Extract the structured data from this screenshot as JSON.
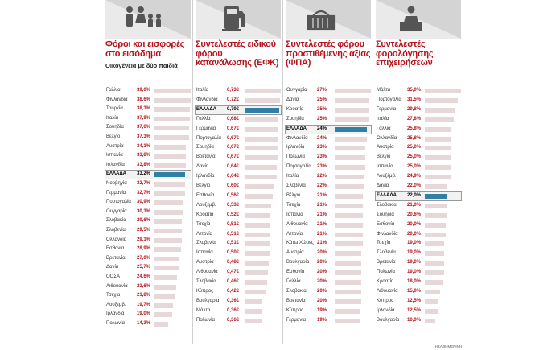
{
  "credit": "ΗΚΑΘΗΜΕΡΙΝΗ",
  "colors": {
    "accent": "#b5121b",
    "bar": "#e6d8d8",
    "highlight_bar": "#2f7fa6",
    "header_bg": "#e0e0e0",
    "icon": "#555555"
  },
  "chart_data": [
    {
      "type": "bar",
      "icon": "family-icon",
      "title": "Φόροι και εισφορές στο εισόδημα",
      "subtitle": "Οικογένεια με δύο παιδιά",
      "highlight": "ΕΛΛΑΔΑ",
      "categories": [
        "Γαλλία",
        "Φινλανδία",
        "Τουρκία",
        "Ιταλία",
        "Σουηδία",
        "Βέλγιο",
        "Αυστρία",
        "Ισπανία",
        "Ισλανδία",
        "ΕΛΛΑΔΑ",
        "Νορβηγία",
        "Γερμανία",
        "Πορτογαλία",
        "Ουγγαρία",
        "Σλοβακία",
        "Σλοβενία",
        "Ολλανδία",
        "Εσθονία",
        "Βρετανία",
        "Δανία",
        "ΟΟΣΑ",
        "Λιθουανία",
        "Τσεχία",
        "Λουξεμβ.",
        "Ιρλανδία",
        "Πολωνία"
      ],
      "labels": [
        "39,0%",
        "38,6%",
        "38,3%",
        "37,9%",
        "37,6%",
        "37,3%",
        "34,1%",
        "33,8%",
        "33,8%",
        "33,2%",
        "32,7%",
        "32,7%",
        "30,9%",
        "30,3%",
        "29,6%",
        "29,5%",
        "29,1%",
        "28,9%",
        "27,0%",
        "25,7%",
        "24,6%",
        "23,6%",
        "21,8%",
        "19,7%",
        "19,0%",
        "14,3%"
      ],
      "values": [
        39.0,
        38.6,
        38.3,
        37.9,
        37.6,
        37.3,
        34.1,
        33.8,
        33.8,
        33.2,
        32.7,
        32.7,
        30.9,
        30.3,
        29.6,
        29.5,
        29.1,
        28.9,
        27.0,
        25.7,
        24.6,
        23.6,
        21.8,
        19.7,
        19.0,
        14.3
      ]
    },
    {
      "type": "bar",
      "icon": "fuel-pump-icon",
      "title": "Συντελεστές ειδικού φόρου κατανάλωσης (ΕΦΚ)",
      "subtitle": "",
      "highlight": "ΕΛΛΑΔΑ",
      "categories": [
        "Ιταλία",
        "Φινλανδία",
        "ΕΛΛΑΔΑ",
        "Γαλλία",
        "Γερμανία",
        "Πορτογαλία",
        "Σουηδία",
        "Βρετανία",
        "Δανία",
        "Ιρλανδία",
        "Βέλγιο",
        "Εσθονία",
        "Λουξέμβ.",
        "Κροατία",
        "Τσεχία",
        "Λετονία",
        "Σλοβενία",
        "Ισπανία",
        "Αυστρία",
        "Λιθουανία",
        "Σλοβακία",
        "Κύπρος",
        "Βουλγαρία",
        "Μάλτα",
        "Πολωνία"
      ],
      "labels": [
        "0,73€",
        "0,72€",
        "0,70€",
        "0,68€",
        "0,67€",
        "0,67€",
        "0,67€",
        "0,67€",
        "0,64€",
        "0,64€",
        "0,60€",
        "0,56€",
        "0,53€",
        "0,52€",
        "0,51€",
        "0,51€",
        "0,51€",
        "0,50€",
        "0,48€",
        "0,47€",
        "0,46€",
        "0,42€",
        "0,36€",
        "0,36€",
        "0,36€"
      ],
      "values": [
        0.73,
        0.72,
        0.7,
        0.68,
        0.67,
        0.67,
        0.67,
        0.67,
        0.64,
        0.64,
        0.6,
        0.56,
        0.53,
        0.52,
        0.51,
        0.51,
        0.51,
        0.5,
        0.48,
        0.47,
        0.46,
        0.42,
        0.36,
        0.36,
        0.36
      ]
    },
    {
      "type": "bar",
      "icon": "basket-icon",
      "title": "Συντελεστές φόρου προστιθέμενης αξίας (ΦΠΑ)",
      "subtitle": "",
      "highlight": "ΕΛΛΑΔΑ",
      "categories": [
        "Ουγγαρία",
        "Δανία",
        "Κροατία",
        "Σουηδία",
        "ΕΛΛΑΔΑ",
        "Φινλανδία",
        "Ιρλανδία",
        "Πολωνία",
        "Πορτογαλία",
        "Ιταλία",
        "Σλοβενία",
        "Βέλγιο",
        "Τσεχία",
        "Ισπανία",
        "Λιθουανία",
        "Λετονία",
        "Κάτω Χώρες",
        "Αυστρία",
        "Βουλγαρία",
        "Εσθονία",
        "Γαλλία",
        "Σλοβακία",
        "Βρετανία",
        "Κύπρος",
        "Γερμανία"
      ],
      "labels": [
        "27%",
        "25%",
        "25%",
        "25%",
        "24%",
        "24%",
        "23%",
        "23%",
        "23%",
        "22%",
        "22%",
        "21%",
        "21%",
        "21%",
        "21%",
        "21%",
        "21%",
        "20%",
        "20%",
        "20%",
        "20%",
        "20%",
        "20%",
        "19%",
        "19%"
      ],
      "values": [
        27,
        25,
        25,
        25,
        24,
        24,
        23,
        23,
        23,
        22,
        22,
        21,
        21,
        21,
        21,
        21,
        21,
        20,
        20,
        20,
        20,
        20,
        20,
        19,
        19
      ]
    },
    {
      "type": "bar",
      "icon": "business-desk-icon",
      "title": "Συντελεστές φορολόγησης επιχειρήσεων",
      "subtitle": "",
      "highlight": "ΕΛΛΑΔΑ",
      "categories": [
        "Μάλτα",
        "Πορτογαλία",
        "Γερμανία",
        "Ιταλία",
        "Γαλλία",
        "Ολλανδία",
        "Αυστρία",
        "Βέλγιο",
        "Ισπανία",
        "Λουξέμβ.",
        "Δανία",
        "ΕΛΛΑΔΑ",
        "Σλοβακία",
        "Σουηδία",
        "Εσθονία",
        "Φινλανδία",
        "Τσεχία",
        "Σλοβενία",
        "Βρετανία",
        "Πολωνία",
        "Κροατία",
        "Λιθουανία",
        "Κύπρος",
        "Ιρλανδία",
        "Βουλγαρία"
      ],
      "labels": [
        "35,0%",
        "31,5%",
        "29,8%",
        "27,8%",
        "25,8%",
        "25,8%",
        "25,0%",
        "25,0%",
        "25,0%",
        "24,9%",
        "22,0%",
        "22,0%",
        "21,0%",
        "20,6%",
        "20,0%",
        "20,0%",
        "19,0%",
        "19,0%",
        "19,0%",
        "19,0%",
        "18,0%",
        "15,0%",
        "12,5%",
        "12,5%",
        "10,0%"
      ],
      "values": [
        35.0,
        31.5,
        29.8,
        27.8,
        25.8,
        25.8,
        25.0,
        25.0,
        25.0,
        24.9,
        22.0,
        22.0,
        21.0,
        20.6,
        20.0,
        20.0,
        19.0,
        19.0,
        19.0,
        19.0,
        18.0,
        15.0,
        12.5,
        12.5,
        10.0
      ]
    }
  ]
}
